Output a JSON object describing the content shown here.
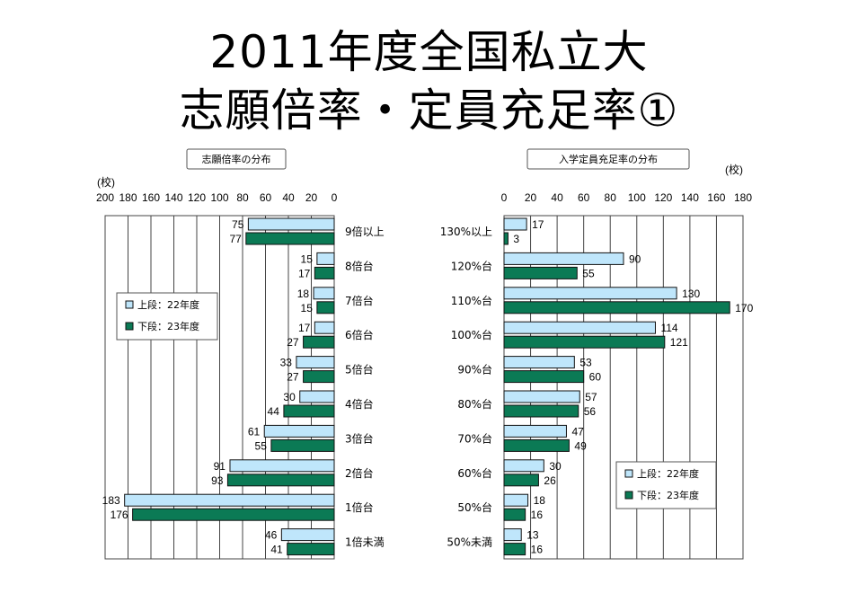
{
  "title_line1": "2011年度全国私立大",
  "title_line2": "志願倍率・定員充足率①",
  "chart_data": [
    {
      "type": "bar",
      "orientation": "horizontal",
      "direction": "right-to-left",
      "title": "志願倍率の分布",
      "unit": "(校)",
      "xlim": [
        0,
        200
      ],
      "ticks": [
        200,
        180,
        160,
        140,
        120,
        100,
        80,
        60,
        40,
        20,
        0
      ],
      "categories": [
        "9倍以上",
        "8倍台",
        "7倍台",
        "6倍台",
        "5倍台",
        "4倍台",
        "3倍台",
        "2倍台",
        "1倍台",
        "1倍未満"
      ],
      "series": [
        {
          "name": "上段：22年度",
          "color": "#bfe6fb",
          "values": [
            75,
            15,
            18,
            17,
            33,
            30,
            61,
            91,
            183,
            46
          ]
        },
        {
          "name": "下段：23年度",
          "color": "#0b7a55",
          "values": [
            77,
            17,
            15,
            27,
            27,
            44,
            55,
            93,
            176,
            41
          ]
        }
      ],
      "legend": "middle-left"
    },
    {
      "type": "bar",
      "orientation": "horizontal",
      "direction": "left-to-right",
      "title": "入学定員充足率の分布",
      "unit": "(校)",
      "xlim": [
        0,
        180
      ],
      "ticks": [
        0,
        20,
        40,
        60,
        80,
        100,
        120,
        140,
        160,
        180
      ],
      "categories": [
        "130%以上",
        "120%台",
        "110%台",
        "100%台",
        "90%台",
        "80%台",
        "70%台",
        "60%台",
        "50%台",
        "50%未満"
      ],
      "series": [
        {
          "name": "上段：22年度",
          "color": "#bfe6fb",
          "values": [
            17,
            90,
            130,
            114,
            53,
            57,
            47,
            30,
            18,
            13
          ]
        },
        {
          "name": "下段：23年度",
          "color": "#0b7a55",
          "values": [
            3,
            55,
            170,
            121,
            60,
            56,
            49,
            26,
            16,
            16
          ]
        }
      ],
      "legend": "bottom-right"
    }
  ]
}
